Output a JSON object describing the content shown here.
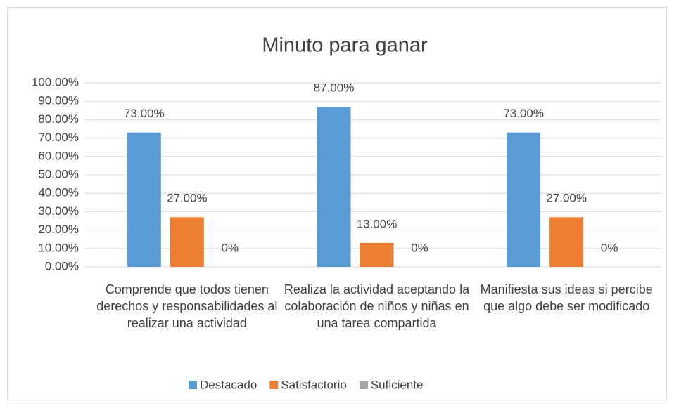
{
  "chart_data": {
    "type": "bar",
    "title": "Minuto para ganar",
    "categories": [
      "Comprende que todos tienen derechos y responsabilidades al realizar una actividad",
      "Realiza la actividad aceptando la colaboración de niños y niñas en una tarea compartida",
      "Manifiesta sus ideas si percibe que algo debe ser modificado"
    ],
    "series": [
      {
        "name": "Destacado",
        "color": "#5b9bd5",
        "values": [
          73,
          87,
          73
        ],
        "value_labels": [
          "73.00%",
          "87.00%",
          "73.00%"
        ]
      },
      {
        "name": "Satisfactorio",
        "color": "#ed7d31",
        "values": [
          27,
          13,
          27
        ],
        "value_labels": [
          "27.00%",
          "13.00%",
          "27.00%"
        ]
      },
      {
        "name": "Suficiente",
        "color": "#a5a5a5",
        "values": [
          0,
          0,
          0
        ],
        "value_labels": [
          "0%",
          "0%",
          "0%"
        ]
      }
    ],
    "ylim": [
      0,
      100
    ],
    "yticks": [
      {
        "value": 0,
        "label": "0.00%"
      },
      {
        "value": 10,
        "label": "10.00%"
      },
      {
        "value": 20,
        "label": "20.00%"
      },
      {
        "value": 30,
        "label": "30.00%"
      },
      {
        "value": 40,
        "label": "40.00%"
      },
      {
        "value": 50,
        "label": "50.00%"
      },
      {
        "value": 60,
        "label": "60.00%"
      },
      {
        "value": 70,
        "label": "70.00%"
      },
      {
        "value": 80,
        "label": "80.00%"
      },
      {
        "value": 90,
        "label": "90.00%"
      },
      {
        "value": 100,
        "label": "100.00%"
      }
    ],
    "grid": true,
    "legend": "bottom"
  }
}
